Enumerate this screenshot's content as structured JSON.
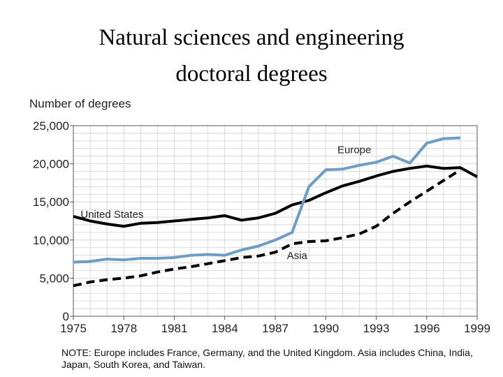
{
  "title_lines": [
    "Natural sciences and engineering",
    "doctoral degrees"
  ],
  "note": "NOTE: Europe includes France, Germany, and the United Kingdom. Asia includes China, India, Japan, South Korea, and Taiwan.",
  "colors": {
    "united_states": "#000000",
    "europe": "#6a9ec8",
    "asia": "#000000",
    "grid": "#d0d0d0"
  },
  "chart_data": {
    "type": "line",
    "title": "Natural sciences and engineering doctoral degrees",
    "ylabel": "Number of degrees",
    "xlabel": "",
    "xlim": [
      1975,
      1999
    ],
    "ylim": [
      0,
      25000
    ],
    "x_ticks": [
      1975,
      1978,
      1981,
      1984,
      1987,
      1990,
      1993,
      1996,
      1999
    ],
    "y_ticks": [
      0,
      5000,
      10000,
      15000,
      20000,
      25000
    ],
    "x_tick_labels": [
      "1975",
      "1978",
      "1981",
      "1984",
      "1987",
      "1990",
      "1993",
      "1996",
      "1999"
    ],
    "y_tick_labels": [
      "0",
      "5,000",
      "10,000",
      "15,000",
      "20,000",
      "25,000"
    ],
    "grid": true,
    "series": [
      {
        "name": "United States",
        "key": "united_states",
        "style": "solid",
        "x": [
          1975,
          1976,
          1977,
          1978,
          1979,
          1980,
          1981,
          1982,
          1983,
          1984,
          1985,
          1986,
          1987,
          1988,
          1989,
          1990,
          1991,
          1992,
          1993,
          1994,
          1995,
          1996,
          1997,
          1998,
          1999
        ],
        "y": [
          13100,
          12500,
          12100,
          11800,
          12200,
          12300,
          12500,
          12700,
          12900,
          13200,
          12600,
          12900,
          13500,
          14600,
          15200,
          16200,
          17100,
          17700,
          18400,
          19000,
          19400,
          19700,
          19400,
          19500,
          18300
        ],
        "label_at": [
          1977.3,
          12900
        ]
      },
      {
        "name": "Europe",
        "key": "europe",
        "style": "solid",
        "x": [
          1975,
          1976,
          1977,
          1978,
          1979,
          1980,
          1981,
          1982,
          1983,
          1984,
          1985,
          1986,
          1987,
          1988,
          1989,
          1990,
          1991,
          1992,
          1993,
          1994,
          1995,
          1996,
          1997,
          1998
        ],
        "y": [
          7100,
          7200,
          7500,
          7400,
          7600,
          7600,
          7700,
          8000,
          8100,
          8000,
          8700,
          9200,
          10000,
          11000,
          17000,
          19200,
          19300,
          19800,
          20200,
          21000,
          20100,
          22700,
          23300,
          23400
        ],
        "label_at": [
          1991.7,
          21400
        ]
      },
      {
        "name": "Asia",
        "key": "asia",
        "style": "dashed",
        "x": [
          1975,
          1976,
          1977,
          1978,
          1979,
          1980,
          1981,
          1982,
          1983,
          1984,
          1985,
          1986,
          1987,
          1988,
          1989,
          1990,
          1991,
          1992,
          1993,
          1994,
          1995,
          1996,
          1997,
          1998
        ],
        "y": [
          4000,
          4500,
          4800,
          5000,
          5300,
          5800,
          6200,
          6500,
          6900,
          7300,
          7700,
          7900,
          8400,
          9500,
          9800,
          9900,
          10300,
          10800,
          11800,
          13500,
          15000,
          16400,
          17800,
          19200
        ],
        "label_at": [
          1988.3,
          7500
        ]
      }
    ]
  }
}
